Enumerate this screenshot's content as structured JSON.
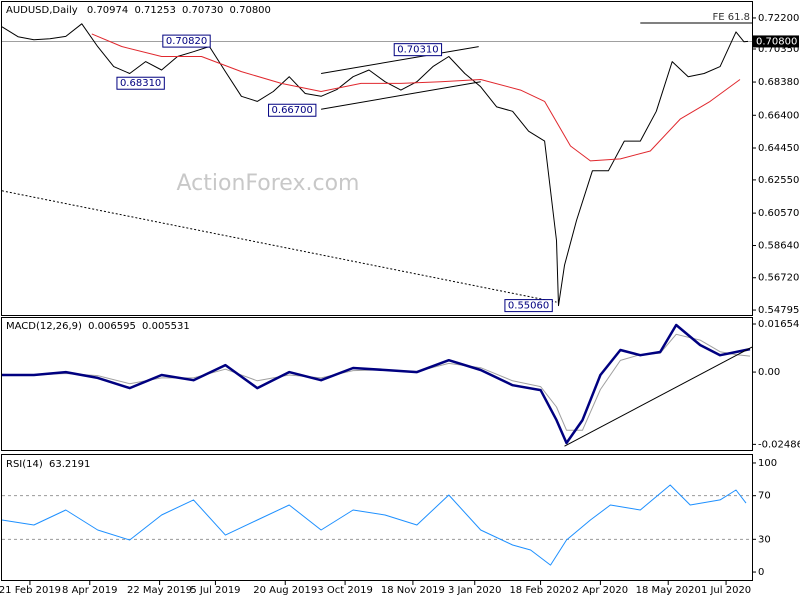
{
  "watermark": "ActionForex.com",
  "chart_data": [
    {
      "type": "line",
      "title": {
        "symbol": "AUDUSD,Daily",
        "ohlc": [
          0.70974,
          0.71253,
          {
            "value": 0.7073,
            "label": "0.70730"
          },
          {
            "value": 0.708,
            "label": "0.70800"
          }
        ]
      },
      "xlim": [
        0,
        376
      ],
      "ylim": [
        0.545,
        0.7315
      ],
      "yticks": [
        {
          "value": 0.722,
          "label": "0.72200"
        },
        {
          "value": 0.7035,
          "label": "0.70350"
        },
        {
          "value": 0.6838,
          "label": "0.68380"
        },
        {
          "value": 0.664,
          "label": "0.66400"
        },
        {
          "value": 0.6445,
          "label": "0.64450"
        },
        {
          "value": 0.6255,
          "label": "0.62550"
        },
        {
          "value": 0.6057,
          "label": "0.60570"
        },
        {
          "value": 0.5864,
          "label": "0.58640"
        },
        {
          "value": 0.5672,
          "label": "0.56720"
        },
        0.54795
      ],
      "series": [
        {
          "color": "#000000",
          "style": "solid",
          "x": [
            0,
            8,
            16,
            24,
            32,
            40,
            48,
            56,
            64,
            72,
            80,
            88,
            96,
            104,
            112,
            120,
            128,
            136,
            144,
            152,
            160,
            168,
            176,
            184,
            192,
            200,
            208,
            216,
            224,
            232,
            240,
            248,
            256,
            264,
            272,
            278,
            279,
            282,
            288,
            296,
            304,
            312,
            320,
            328,
            336,
            344,
            352,
            360,
            368,
            372,
            374
          ],
          "values": [
            0.7167,
            0.7108,
            0.709,
            0.7096,
            0.711,
            0.7185,
            0.7049,
            0.693,
            0.6889,
            0.696,
            0.691,
            0.699,
            0.7019,
            0.705,
            0.69,
            0.6753,
            0.6723,
            0.6782,
            0.687,
            0.677,
            0.6753,
            0.6794,
            0.687,
            0.691,
            0.684,
            0.679,
            0.684,
            0.693,
            0.699,
            0.6889,
            0.681,
            0.669,
            0.6664,
            0.6545,
            0.6486,
            0.5894,
            0.5506,
            0.5746,
            0.6013,
            0.6309,
            0.6309,
            0.6486,
            0.6486,
            0.6664,
            0.696,
            0.687,
            0.6889,
            0.693,
            0.7137,
            0.7078,
            0.708
          ]
        },
        {
          "color": "#e0282e",
          "style": "solid",
          "x": [
            45,
            60,
            80,
            100,
            120,
            140,
            160,
            180,
            200,
            220,
            240,
            260,
            272,
            285,
            295,
            310,
            325,
            340,
            355,
            370
          ],
          "values": [
            0.7125,
            0.705,
            0.699,
            0.699,
            0.69,
            0.683,
            0.6782,
            0.683,
            0.683,
            0.684,
            0.6853,
            0.679,
            0.6723,
            0.6457,
            0.6368,
            0.638,
            0.6427,
            0.6617,
            0.6723,
            0.6853
          ]
        },
        {
          "color": "#000000",
          "style": "dashed",
          "x": [
            0,
            278
          ],
          "values": [
            0.619,
            0.5527
          ]
        },
        {
          "color": "#000000",
          "style": "solid",
          "x": [
            160,
            239
          ],
          "values": [
            0.6889,
            0.7049
          ]
        },
        {
          "color": "#000000",
          "style": "solid",
          "x": [
            160,
            240
          ],
          "values": [
            0.6676,
            0.684
          ]
        }
      ],
      "annotations": [
        {
          "label": "0.70820",
          "value": 0.7082,
          "x": 92.5
        },
        {
          "label": "0.68310",
          "value": 0.6831,
          "x": 69.5
        },
        {
          "label": "0.66700",
          "value": 0.667,
          "x": 145.5
        },
        {
          "label": "0.70310",
          "value": 0.7031,
          "x": 208.5
        },
        {
          "label": "0.55060",
          "value": 0.5506,
          "x": 264
        }
      ],
      "fe_level": {
        "label": "FE 61.8",
        "value": 0.719,
        "x": [
          320,
          376
        ]
      },
      "last_price": {
        "value": 0.708,
        "label": "0.70800"
      }
    },
    {
      "type": "line",
      "title": {
        "name": "MACD(12,26,9)",
        "values": [
          0.006595,
          0.005531
        ]
      },
      "xlim": [
        0,
        376
      ],
      "ylim": [
        -0.0268,
        0.0186
      ],
      "yticks": [
        0.01654,
        {
          "value": 0,
          "label": "0.00"
        },
        -0.02486
      ],
      "series": [
        {
          "color": "#a0a0a0",
          "style": "solid",
          "x": [
            0,
            16,
            32,
            48,
            64,
            80,
            96,
            112,
            128,
            144,
            160,
            176,
            192,
            208,
            224,
            240,
            256,
            270,
            278,
            283,
            291,
            300,
            310,
            320,
            330,
            338,
            350,
            360,
            368,
            375
          ],
          "values": [
            -0.0008,
            -0.001,
            -0.0005,
            -0.0012,
            -0.004,
            -0.002,
            -0.002,
            0.001,
            -0.003,
            -0.001,
            -0.002,
            0.0005,
            0.0008,
            0.0002,
            0.003,
            0.0015,
            -0.003,
            -0.005,
            -0.012,
            -0.02,
            -0.02,
            -0.006,
            0.004,
            0.006,
            0.0065,
            0.013,
            0.011,
            0.007,
            0.006,
            0.0055
          ]
        },
        {
          "color": "#000080",
          "style": "bold",
          "x": [
            0,
            16,
            32,
            48,
            64,
            80,
            96,
            112,
            128,
            144,
            160,
            176,
            192,
            208,
            224,
            240,
            256,
            270,
            278,
            283,
            291,
            300,
            310,
            320,
            330,
            338,
            350,
            360,
            368,
            375
          ],
          "values": [
            -0.001,
            -0.001,
            0,
            -0.002,
            -0.0055,
            -0.001,
            -0.0028,
            0.0024,
            -0.0055,
            0,
            -0.0028,
            0.0014,
            0.0007,
            0,
            0.0041,
            0.0007,
            -0.0045,
            -0.0062,
            -0.0165,
            -0.0244,
            -0.0165,
            -0.001,
            0.0076,
            0.0058,
            0.0069,
            0.0162,
            0.0093,
            0.0058,
            0.0069,
            0.0079
          ]
        },
        {
          "color": "#000000",
          "style": "solid",
          "x": [
            282,
            376
          ],
          "values": [
            -0.0255,
            0.0086
          ]
        }
      ]
    },
    {
      "type": "line",
      "title": {
        "name": "RSI(14)",
        "values": [
          63.2191
        ]
      },
      "xlim": [
        0,
        376
      ],
      "ylim": [
        -7.3,
        107.3
      ],
      "yticks": [
        100,
        70,
        30,
        0
      ],
      "levels": [
        70,
        30
      ],
      "xticks": [
        {
          "value": 14,
          "label": "21 Feb 2019"
        },
        {
          "value": 44,
          "label": "8 Apr 2019"
        },
        {
          "value": 79,
          "label": "22 May 2019"
        },
        {
          "value": 107,
          "label": "5 Jul 2019"
        },
        {
          "value": 142,
          "label": "20 Aug 2019"
        },
        {
          "value": 172,
          "label": "3 Oct 2019"
        },
        {
          "value": 206,
          "label": "18 Nov 2019"
        },
        {
          "value": 237,
          "label": "3 Jan 2020"
        },
        {
          "value": 270,
          "label": "18 Feb 2020"
        },
        {
          "value": 300,
          "label": "2 Apr 2020"
        },
        {
          "value": 334,
          "label": "18 May 2020"
        },
        {
          "value": 363,
          "label": "1 Jul 2020"
        }
      ],
      "series": [
        {
          "color": "#1e90ff",
          "style": "solid",
          "x": [
            0,
            16,
            32,
            48,
            64,
            80,
            96,
            112,
            128,
            144,
            160,
            176,
            192,
            208,
            224,
            240,
            256,
            265,
            275,
            283,
            295,
            305,
            320,
            335,
            345,
            360,
            368,
            373
          ],
          "values": [
            47.7,
            43.1,
            56.9,
            38.5,
            29.4,
            52.3,
            66.1,
            33.9,
            47.7,
            61.5,
            38.5,
            56.9,
            52.3,
            43.1,
            70.6,
            38.5,
            24.8,
            20.2,
            6.4,
            29.4,
            47.7,
            61.5,
            56.9,
            79.8,
            61.5,
            66.1,
            75.2,
            63.2
          ]
        }
      ]
    }
  ]
}
